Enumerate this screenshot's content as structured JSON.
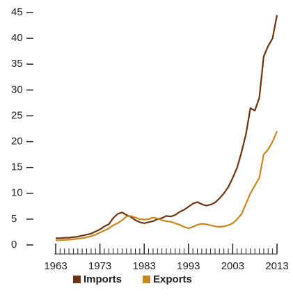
{
  "chart_data": {
    "type": "line",
    "x": [
      1963,
      1964,
      1965,
      1966,
      1967,
      1968,
      1969,
      1970,
      1971,
      1972,
      1973,
      1974,
      1975,
      1976,
      1977,
      1978,
      1979,
      1980,
      1981,
      1982,
      1983,
      1984,
      1985,
      1986,
      1987,
      1988,
      1989,
      1990,
      1991,
      1992,
      1993,
      1994,
      1995,
      1996,
      1997,
      1998,
      1999,
      2000,
      2001,
      2002,
      2003,
      2004,
      2005,
      2006,
      2007,
      2008,
      2009,
      2010,
      2011,
      2012,
      2013
    ],
    "series": [
      {
        "name": "Imports",
        "color": "#6b3410",
        "values": [
          1.3,
          1.3,
          1.4,
          1.4,
          1.5,
          1.6,
          1.8,
          2.0,
          2.2,
          2.6,
          3.0,
          3.6,
          4.0,
          5.2,
          6.0,
          6.3,
          5.8,
          5.4,
          4.8,
          4.4,
          4.2,
          4.4,
          4.6,
          5.0,
          5.2,
          5.6,
          5.5,
          5.8,
          6.4,
          6.8,
          7.4,
          8.0,
          8.3,
          7.9,
          7.6,
          7.8,
          8.2,
          9.0,
          10.0,
          11.2,
          13.0,
          15.0,
          18.0,
          21.5,
          26.5,
          26.0,
          28.5,
          36.5,
          38.5,
          40.0,
          44.5
        ]
      },
      {
        "name": "Exports",
        "color": "#c8861e",
        "values": [
          0.9,
          0.9,
          1.0,
          1.0,
          1.1,
          1.2,
          1.3,
          1.5,
          1.7,
          2.0,
          2.4,
          2.8,
          3.2,
          3.8,
          4.2,
          4.8,
          5.5,
          5.6,
          5.3,
          5.0,
          4.9,
          5.0,
          5.3,
          5.1,
          4.8,
          4.6,
          4.5,
          4.2,
          3.9,
          3.5,
          3.2,
          3.5,
          3.9,
          4.1,
          4.0,
          3.8,
          3.6,
          3.5,
          3.6,
          3.8,
          4.2,
          5.0,
          6.0,
          8.0,
          10.0,
          11.5,
          13.0,
          17.5,
          18.5,
          20.0,
          22.0
        ]
      }
    ],
    "xlim": [
      1963,
      2013
    ],
    "xticks": [
      1963,
      1973,
      1983,
      1993,
      2003,
      2013
    ],
    "ylim": [
      0,
      45
    ],
    "yticks": [
      0,
      5,
      10,
      15,
      20,
      25,
      30,
      35,
      40,
      45
    ],
    "grid": false,
    "legend": "bottom"
  }
}
